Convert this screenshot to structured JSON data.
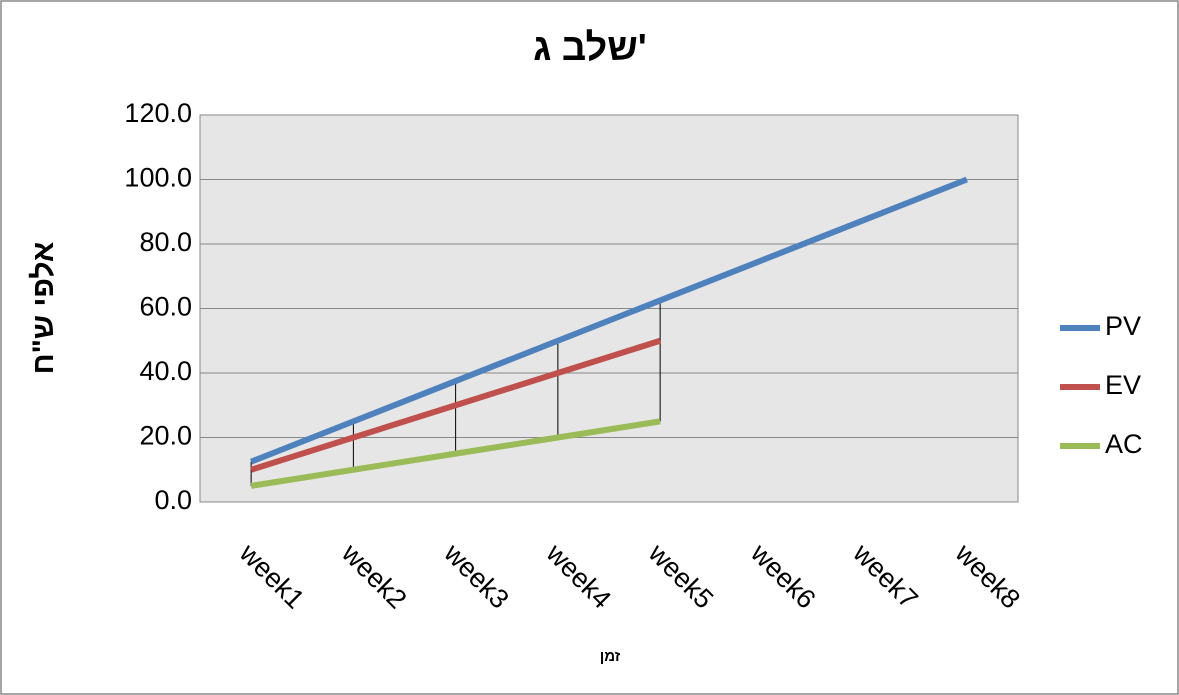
{
  "chart_data": {
    "type": "line",
    "title": "שלב ג'",
    "x_label": "זמן",
    "y_label": "אלפי ש\"ח",
    "categories": [
      "week1",
      "week2",
      "week3",
      "week4",
      "week5",
      "week6",
      "week7",
      "week8"
    ],
    "series": [
      {
        "name": "PV",
        "color": "#4f81bd",
        "values": [
          12.5,
          25,
          37.5,
          50,
          62.5,
          75,
          87.5,
          100
        ]
      },
      {
        "name": "EV",
        "color": "#c0504d",
        "values": [
          10,
          20,
          30,
          40,
          50,
          null,
          null,
          null
        ]
      },
      {
        "name": "AC",
        "color": "#9bbb59",
        "values": [
          5,
          10,
          15,
          20,
          25,
          null,
          null,
          null
        ]
      }
    ],
    "ylim": [
      0,
      120
    ],
    "yticks": [
      {
        "value": 0,
        "label": "0.0"
      },
      {
        "value": 20,
        "label": "20.0"
      },
      {
        "value": 40,
        "label": "40.0"
      },
      {
        "value": 60,
        "label": "60.0"
      },
      {
        "value": 80,
        "label": "80.0"
      },
      {
        "value": 100,
        "label": "100.0"
      },
      {
        "value": 120,
        "label": "120.0"
      }
    ],
    "grid": true,
    "high_low_lines": true,
    "legend": "right"
  }
}
